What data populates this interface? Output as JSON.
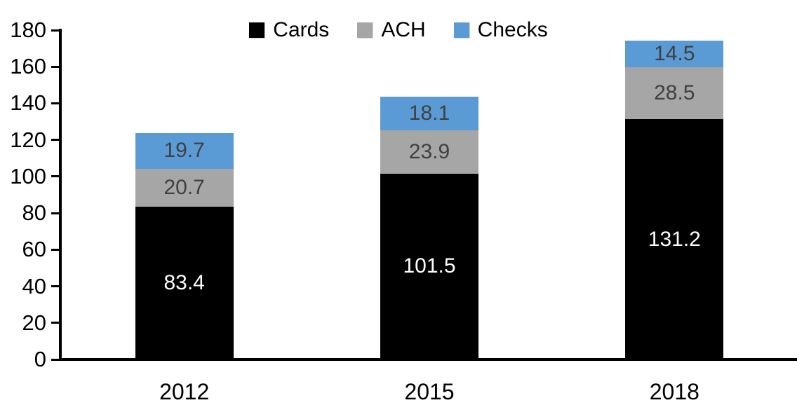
{
  "chart_data": {
    "type": "bar",
    "stacked": true,
    "title": "",
    "xlabel": "",
    "ylabel": "",
    "categories": [
      "2012",
      "2015",
      "2018"
    ],
    "series": [
      {
        "name": "Cards",
        "color": "#000000",
        "label_color": "#ffffff",
        "values": [
          83.4,
          101.5,
          131.2
        ]
      },
      {
        "name": "ACH",
        "color": "#a6a6a6",
        "label_color": "#404040",
        "values": [
          20.7,
          23.9,
          28.5
        ]
      },
      {
        "name": "Checks",
        "color": "#5b9bd5",
        "label_color": "#404040",
        "values": [
          19.7,
          18.1,
          14.5
        ]
      }
    ],
    "ylim": [
      0,
      180
    ],
    "yticks": [
      0,
      20,
      40,
      60,
      80,
      100,
      120,
      140,
      160,
      180
    ],
    "grid": false,
    "legend_position": "top",
    "axis_color": "#000000"
  },
  "legend": {
    "items": [
      "Cards",
      "ACH",
      "Checks"
    ]
  }
}
